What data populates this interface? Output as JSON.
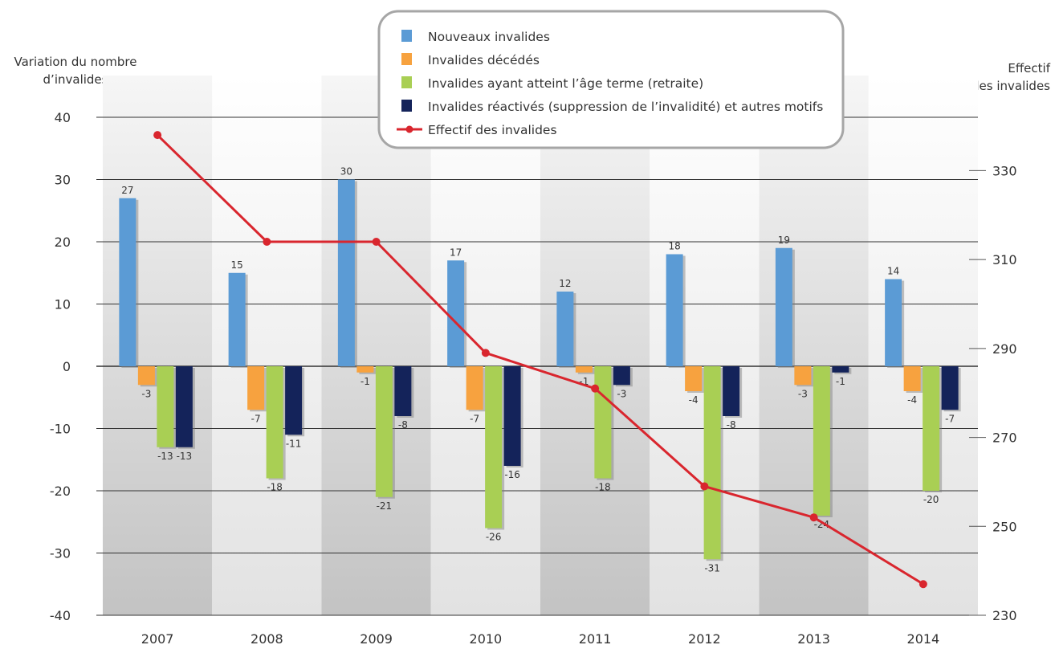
{
  "y_left_label_line1": "Variation du nombre",
  "y_left_label_line2": "d’invalides",
  "y_right_label_line1": "Effectif",
  "y_right_label_line2": "des invalides",
  "colors": {
    "nouveaux": "#5b9bd5",
    "decedes": "#f7a23f",
    "retraite": "#a9cf54",
    "reactives": "#14235a",
    "effectif": "#d9262e",
    "band_dark": "#c9c9c9",
    "band_light": "#e4e4e4",
    "grid": "#333333"
  },
  "chart_data": {
    "type": "bar",
    "categories": [
      "2007",
      "2008",
      "2009",
      "2010",
      "2011",
      "2012",
      "2013",
      "2014"
    ],
    "series": [
      {
        "name": "Nouveaux invalides",
        "key": "nouveaux",
        "values": [
          27,
          15,
          30,
          17,
          12,
          18,
          19,
          14
        ]
      },
      {
        "name": "Invalides décédés",
        "key": "decedes",
        "values": [
          -3,
          -7,
          -1,
          -7,
          -1,
          -4,
          -3,
          -4
        ]
      },
      {
        "name": "Invalides ayant atteint l’âge terme (retraite)",
        "key": "retraite",
        "values": [
          -13,
          -18,
          -21,
          -26,
          -18,
          -31,
          -24,
          -20
        ]
      },
      {
        "name": "Invalides réactivés (suppression de l’invalidité) et autres motifs",
        "key": "reactives",
        "values": [
          -13,
          -11,
          -8,
          -16,
          -3,
          -8,
          -1,
          -7
        ]
      }
    ],
    "line_series": {
      "name": "Effectif des invalides",
      "key": "effectif",
      "axis": "right",
      "values": [
        338,
        314,
        314,
        289,
        281,
        259,
        252,
        237
      ]
    },
    "y_left": {
      "ylim": [
        -40,
        40
      ],
      "ticks": [
        "40",
        "30",
        "20",
        "10",
        "0",
        "-10",
        "-20",
        "-30",
        "-40"
      ]
    },
    "y_right": {
      "ylim": [
        230,
        342
      ],
      "ticks": [
        "330",
        "310",
        "290",
        "270",
        "250",
        "230"
      ]
    },
    "grid": true,
    "legend": "top-center"
  }
}
